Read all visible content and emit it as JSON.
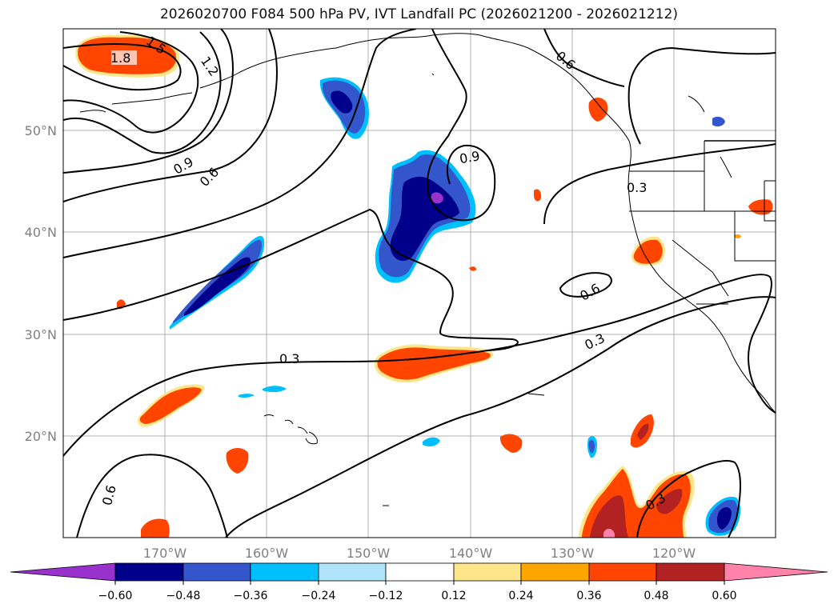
{
  "title": "2026020700 F084 500 hPa PV, IVT Landfall PC (2026021200 - 2026021212)",
  "axes": {
    "lon_labels": [
      "170°W",
      "160°W",
      "150°W",
      "140°W",
      "130°W",
      "120°W"
    ],
    "lat_labels": [
      "50°N",
      "40°N",
      "30°N",
      "20°N"
    ],
    "lon_range": [
      -180,
      -110
    ],
    "lat_range": [
      10,
      60
    ],
    "grid": true
  },
  "contours": {
    "color": "#000000",
    "labels": [
      "1.8",
      "1.5",
      "1.2",
      "0.9",
      "0.6",
      "0.9",
      "0.6",
      "0.3",
      "0.6",
      "0.3",
      "0.3",
      "0.3",
      "0.6"
    ]
  },
  "colorbar": {
    "orientation": "horizontal",
    "extend": "both",
    "tick_labels": [
      "−0.60",
      "−0.48",
      "−0.36",
      "−0.24",
      "−0.12",
      "0.12",
      "0.24",
      "0.36",
      "0.48",
      "0.60"
    ],
    "colors": [
      "#9932cc",
      "#00008b",
      "#3356cc",
      "#00bfff",
      "#afe4fa",
      "#ffffff",
      "#fde68a",
      "#ffa500",
      "#ff4500",
      "#b22222",
      "#ff82ab"
    ]
  }
}
